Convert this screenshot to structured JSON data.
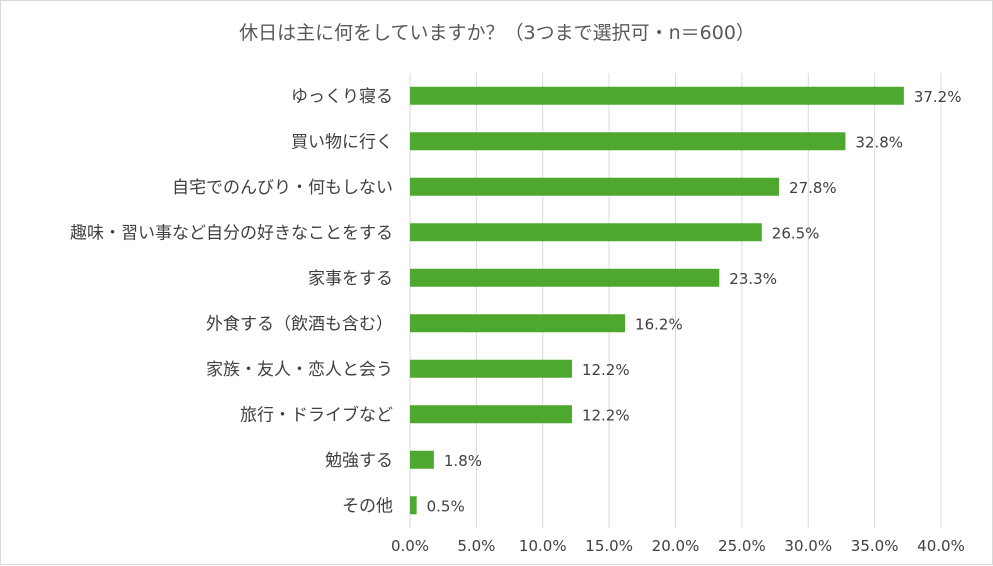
{
  "chart_data": {
    "type": "bar",
    "orientation": "horizontal",
    "title": "休日は主に何をしていますか？（3つまで選択可・n＝600）",
    "categories": [
      "ゆっくり寝る",
      "買い物に行く",
      "自宅でのんびり・何もしない",
      "趣味・習い事など自分の好きなことをする",
      "家事をする",
      "外食する（飲酒も含む）",
      "家族・友人・恋人と会う",
      "旅行・ドライブなど",
      "勉強する",
      "その他"
    ],
    "values": [
      37.2,
      32.8,
      27.8,
      26.5,
      23.3,
      16.2,
      12.2,
      12.2,
      1.8,
      0.5
    ],
    "value_labels": [
      "37.2%",
      "32.8%",
      "27.8%",
      "26.5%",
      "23.3%",
      "16.2%",
      "12.2%",
      "12.2%",
      "1.8%",
      "0.5%"
    ],
    "xlim": [
      0,
      40
    ],
    "xticks": [
      0,
      5,
      10,
      15,
      20,
      25,
      30,
      35,
      40
    ],
    "xtick_labels": [
      "0.0%",
      "5.0%",
      "10.0%",
      "15.0%",
      "20.0%",
      "25.0%",
      "30.0%",
      "35.0%",
      "40.0%"
    ],
    "grid": true,
    "legend": "none",
    "bar_color": "#4ea72e"
  }
}
